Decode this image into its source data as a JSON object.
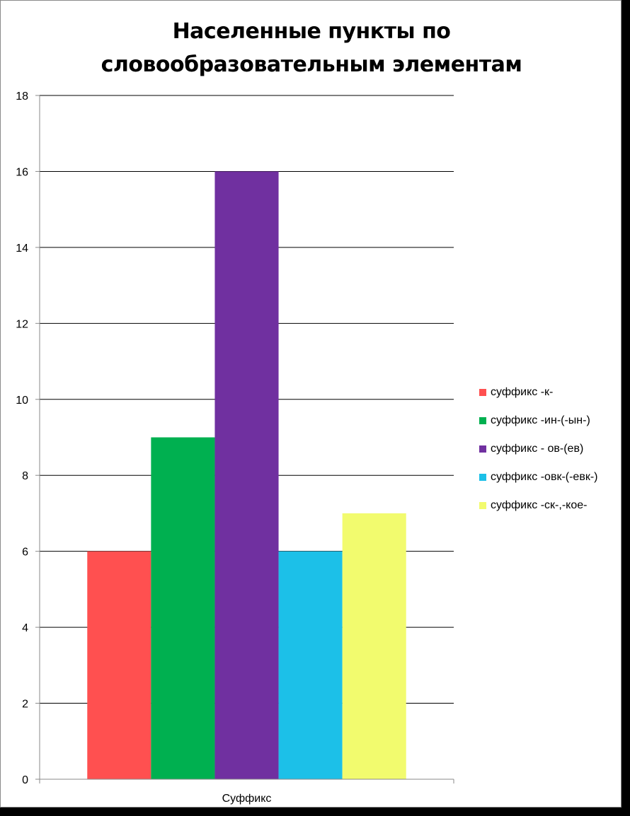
{
  "chart_data": {
    "type": "bar",
    "title": [
      "Населенные пункты по",
      "словообразовательным элементам"
    ],
    "categories": [
      "Суффикс"
    ],
    "series": [
      {
        "name": "суффикс -к-",
        "values": [
          6
        ],
        "color": "#ff5050"
      },
      {
        "name": "суффикс -ин-(-ын-)",
        "values": [
          9
        ],
        "color": "#00b050"
      },
      {
        "name": "суффикс - ов-(ев)",
        "values": [
          16
        ],
        "color": "#7030a0"
      },
      {
        "name": "суффикс -овк-(-евк-)",
        "values": [
          6
        ],
        "color": "#1cc0e8"
      },
      {
        "name": "суффикс -ск-,-кое-",
        "values": [
          7
        ],
        "color": "#f2fb6e"
      }
    ],
    "ylim": [
      0,
      18
    ],
    "yticks": [
      0,
      2,
      4,
      6,
      8,
      10,
      12,
      14,
      16,
      18
    ],
    "grid": true,
    "legend": "right"
  }
}
